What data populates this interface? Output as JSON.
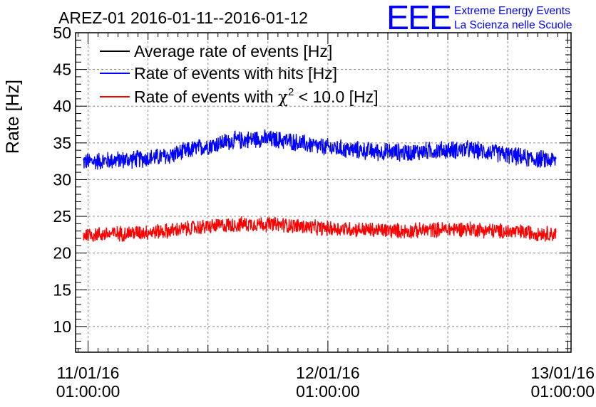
{
  "header": {
    "title": "AREZ-01 2016-01-11--2016-01-12",
    "logo_text": "EEE",
    "org_line1": "Extreme Energy Events",
    "org_line2": "La Scienza nelle Scuole"
  },
  "colors": {
    "average": "#000000",
    "hits": "#0000ff",
    "chi2": "#ff0000",
    "logo": "#0000ff",
    "grid": "#888888"
  },
  "chart_data": {
    "type": "line",
    "ylabel": "Rate [Hz]",
    "ylim": [
      6.5,
      50
    ],
    "yticks": [
      10,
      15,
      20,
      25,
      30,
      35,
      40,
      45,
      50
    ],
    "xlim": [
      "2016-01-10T23:45:00",
      "2016-01-13T01:20:00"
    ],
    "xticks": [
      {
        "date": "11/01/16",
        "time": "01:00:00",
        "x": "2016-01-11T01:00:00"
      },
      {
        "date": "12/01/16",
        "time": "01:00:00",
        "x": "2016-01-12T01:00:00"
      },
      {
        "date": "13/01/16",
        "time": "01:00:00",
        "x": "2016-01-13T01:00:00"
      }
    ],
    "grid": true,
    "legend_position": "top-left",
    "legend": [
      {
        "label": "Average rate of events [Hz]",
        "series": "average"
      },
      {
        "label": "Rate of events with hits [Hz]",
        "series": "hits"
      },
      {
        "label_prefix": "Rate of events with ",
        "label_symbol": "χ",
        "label_sup": "2",
        "label_suffix": " < 10.0 [Hz]",
        "series": "chi2"
      }
    ],
    "series": [
      {
        "key": "hits",
        "x": [
          "2016-01-11T00:30:00",
          "2016-01-11T03:00:00",
          "2016-01-11T06:00:00",
          "2016-01-11T09:00:00",
          "2016-01-11T12:00:00",
          "2016-01-11T15:00:00",
          "2016-01-11T18:00:00",
          "2016-01-11T21:00:00",
          "2016-01-12T00:00:00",
          "2016-01-12T03:00:00",
          "2016-01-12T06:00:00",
          "2016-01-12T09:00:00",
          "2016-01-12T12:00:00",
          "2016-01-12T15:00:00",
          "2016-01-12T18:00:00",
          "2016-01-12T21:00:00",
          "2016-01-12T23:50:00"
        ],
        "y": [
          32.4,
          32.6,
          32.8,
          33.2,
          34.3,
          35.2,
          35.6,
          35.3,
          34.5,
          34.1,
          33.8,
          33.7,
          34.0,
          34.1,
          33.6,
          32.9,
          32.6
        ],
        "noise": 1.4
      },
      {
        "key": "chi2",
        "x": [
          "2016-01-11T00:30:00",
          "2016-01-11T03:00:00",
          "2016-01-11T06:00:00",
          "2016-01-11T09:00:00",
          "2016-01-11T12:00:00",
          "2016-01-11T15:00:00",
          "2016-01-11T18:00:00",
          "2016-01-11T21:00:00",
          "2016-01-12T00:00:00",
          "2016-01-12T03:00:00",
          "2016-01-12T06:00:00",
          "2016-01-12T09:00:00",
          "2016-01-12T12:00:00",
          "2016-01-12T15:00:00",
          "2016-01-12T18:00:00",
          "2016-01-12T21:00:00",
          "2016-01-12T23:50:00"
        ],
        "y": [
          22.5,
          22.6,
          22.8,
          23.0,
          23.5,
          23.8,
          24.0,
          23.8,
          23.4,
          23.3,
          23.1,
          23.0,
          23.2,
          23.3,
          23.0,
          22.8,
          22.6
        ],
        "noise": 1.2
      }
    ]
  }
}
